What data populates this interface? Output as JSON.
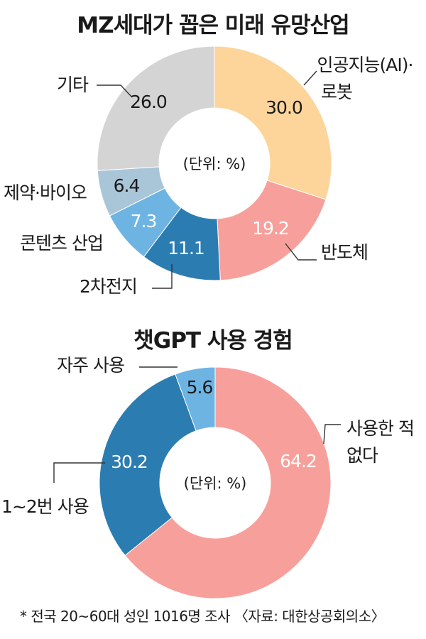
{
  "footnote": "* 전국 20~60대 성인 1016명 조사 〈자료: 대한상공회의소〉",
  "chart_data": [
    {
      "type": "pie",
      "style": "donut",
      "title": "MZ세대가 꼽은 미래 유망산업",
      "center_label": "(단위: %)",
      "unit": "%",
      "categories": [
        "인공지능(AI)·로봇",
        "반도체",
        "2차전지",
        "콘텐츠 산업",
        "제약·바이오",
        "기타"
      ],
      "values": [
        30.0,
        19.2,
        11.1,
        7.3,
        6.4,
        26.0
      ],
      "value_labels": [
        "30.0",
        "19.2",
        "11.1",
        "7.3",
        "6.4",
        "26.0"
      ],
      "colors": [
        "#fdd49a",
        "#f7a09b",
        "#2b7cb0",
        "#6eb4e3",
        "#a9c6d8",
        "#d4d4d4"
      ]
    },
    {
      "type": "pie",
      "style": "donut",
      "title": "챗GPT 사용 경험",
      "center_label": "(단위: %)",
      "unit": "%",
      "categories": [
        "사용한 적 없다",
        "1~2번 사용",
        "자주 사용"
      ],
      "values": [
        64.2,
        30.2,
        5.6
      ],
      "value_labels": [
        "64.2",
        "30.2",
        "5.6"
      ],
      "colors": [
        "#f7a09b",
        "#2b7cb0",
        "#6eb4e3"
      ]
    }
  ]
}
